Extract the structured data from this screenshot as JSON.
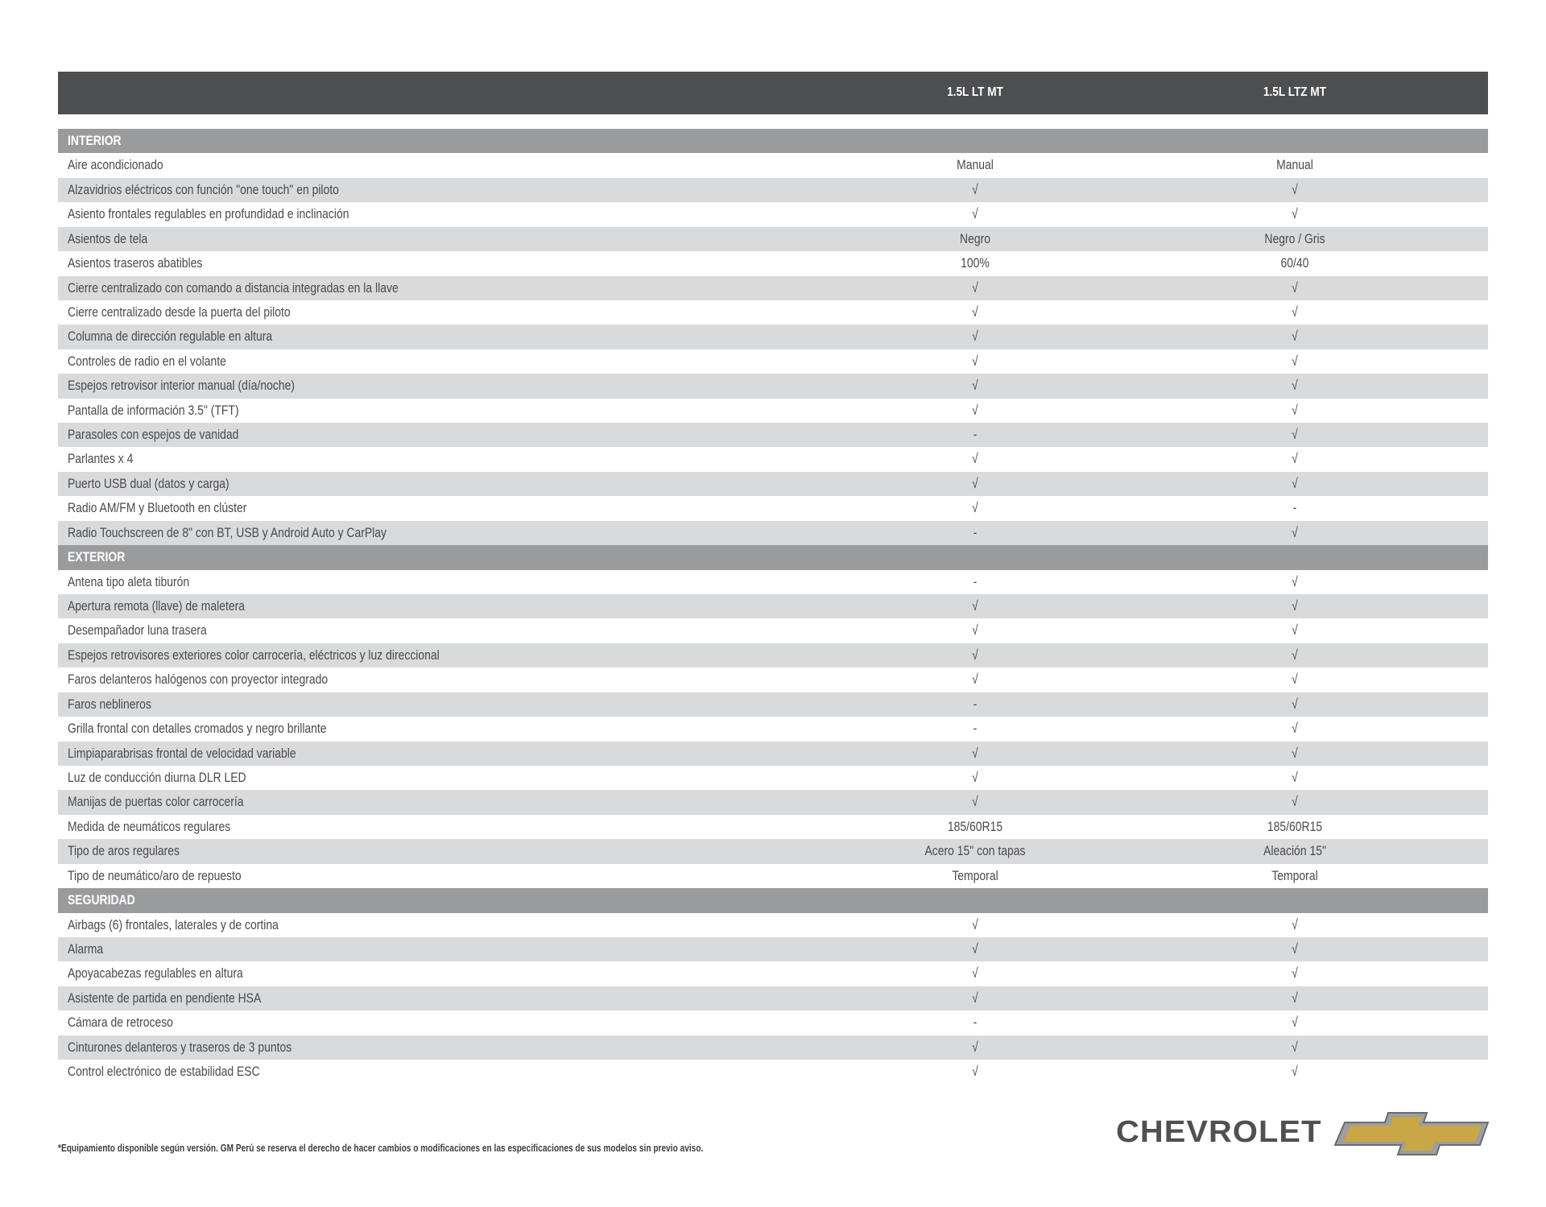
{
  "header": {
    "col1": "1.5L LT MT",
    "col2": "1.5L LTZ MT"
  },
  "sections": [
    {
      "title": "INTERIOR",
      "rows": [
        [
          "Aire acondicionado",
          "Manual",
          "Manual"
        ],
        [
          "Alzavidrios eléctricos  con función \"one touch\" en piloto",
          "√",
          "√"
        ],
        [
          "Asiento frontales regulables en profundidad e inclinación",
          "√",
          "√"
        ],
        [
          "Asientos de tela",
          "Negro",
          "Negro / Gris"
        ],
        [
          "Asientos traseros abatibles",
          "100%",
          "60/40"
        ],
        [
          "Cierre centralizado con comando a distancia integradas en la llave",
          "√",
          "√"
        ],
        [
          "Cierre centralizado desde la puerta del piloto",
          "√",
          "√"
        ],
        [
          "Columna de dirección regulable en altura",
          "√",
          "√"
        ],
        [
          "Controles de radio en el volante",
          "√",
          "√"
        ],
        [
          "Espejos retrovisor interior manual (día/noche)",
          "√",
          "√"
        ],
        [
          "Pantalla de información 3.5\" (TFT)",
          "√",
          "√"
        ],
        [
          "Parasoles con espejos de vanidad",
          "-",
          "√"
        ],
        [
          "Parlantes x 4",
          "√",
          "√"
        ],
        [
          "Puerto USB dual (datos y carga)",
          "√",
          "√"
        ],
        [
          "Radio AM/FM y Bluetooth en clúster",
          "√",
          "-"
        ],
        [
          "Radio Touchscreen de 8\" con BT, USB y Android Auto y CarPlay",
          "-",
          "√"
        ]
      ]
    },
    {
      "title": "EXTERIOR",
      "rows": [
        [
          "Antena tipo aleta tiburón",
          "-",
          "√"
        ],
        [
          "Apertura remota (llave) de maletera",
          "√",
          "√"
        ],
        [
          "Desempañador luna trasera",
          "√",
          "√"
        ],
        [
          "Espejos retrovisores exteriores color carrocería, eléctricos y luz direccional",
          "√",
          "√"
        ],
        [
          "Faros delanteros halógenos con proyector integrado",
          "√",
          "√"
        ],
        [
          "Faros neblineros",
          "-",
          "√"
        ],
        [
          "Grilla frontal con detalles cromados y negro brillante",
          "-",
          "√"
        ],
        [
          "Limpiaparabrisas frontal de velocidad variable",
          "√",
          "√"
        ],
        [
          "Luz de conducción diurna DLR LED",
          "√",
          "√"
        ],
        [
          "Manijas de puertas color carrocería",
          "√",
          "√"
        ],
        [
          "Medida de neumáticos regulares",
          "185/60R15",
          "185/60R15"
        ],
        [
          "Tipo de aros regulares",
          "Acero 15\" con tapas",
          "Aleación 15\""
        ],
        [
          "Tipo de neumático/aro de repuesto",
          "Temporal",
          "Temporal"
        ]
      ]
    },
    {
      "title": "SEGURIDAD",
      "rows": [
        [
          "Airbags (6) frontales, laterales y de cortina",
          "√",
          "√"
        ],
        [
          "Alarma",
          "√",
          "√"
        ],
        [
          "Apoyacabezas regulables en altura",
          "√",
          "√"
        ],
        [
          "Asistente de partida en pendiente HSA",
          "√",
          "√"
        ],
        [
          "Cámara de retroceso",
          "-",
          "√"
        ],
        [
          "Cinturones delanteros y traseros de 3 puntos",
          "√",
          "√"
        ],
        [
          "Control electrónico de estabilidad ESC",
          "√",
          "√"
        ]
      ]
    }
  ],
  "footer": {
    "disclaimer": "*Equipamiento disponible según versión. GM Perú se reserva el derecho de hacer cambios o modificaciones en las especificaciones de sus modelos sin previo aviso."
  },
  "brand": {
    "name": "CHEVROLET",
    "gold": "#c9a646"
  },
  "colors": {
    "header": "#4d4e50",
    "section": "#9a9b9d",
    "row_alt": "#d9dadb"
  }
}
